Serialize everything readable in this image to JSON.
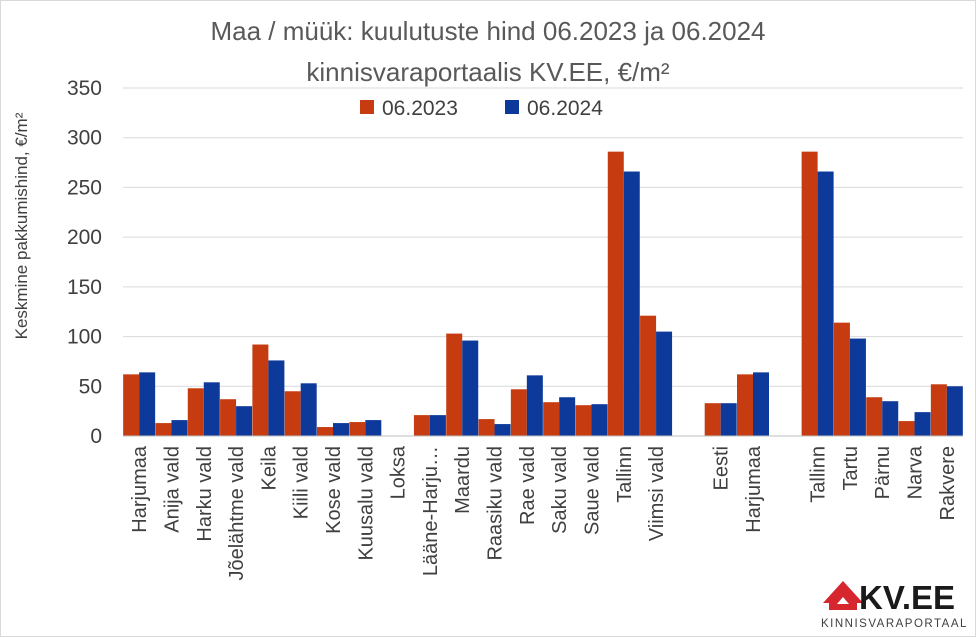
{
  "chart_data": {
    "type": "bar",
    "title": "Maa / müük: kuulutuste hind 06.2023 ja 06.2024",
    "subtitle": "kinnisvaraportaalis KV.EE, €/m²",
    "ylabel": "Keskmine pakkumishind, €/m²",
    "xlabel": "",
    "ylim": [
      0,
      350
    ],
    "yticks": [
      0,
      50,
      100,
      150,
      200,
      250,
      300,
      350
    ],
    "grid": true,
    "legend_position": "top",
    "categories": [
      "Harjumaa",
      "Anija vald",
      "Harku vald",
      "Jõelähtme vald",
      "Keila",
      "Kiili vald",
      "Kose vald",
      "Kuusalu vald",
      "Loksa",
      "Lääne-Harju…",
      "Maardu",
      "Raasiku vald",
      "Rae vald",
      "Saku vald",
      "Saue vald",
      "Tallinn",
      "Viimsi vald",
      "",
      "Eesti",
      "Harjumaa",
      "",
      "Tallinn",
      "Tartu",
      "Pärnu",
      "Narva",
      "Rakvere"
    ],
    "series": [
      {
        "name": "06.2023",
        "color": "#C63C10",
        "values": [
          62,
          13,
          48,
          37,
          92,
          45,
          9,
          14,
          0,
          21,
          103,
          17,
          47,
          34,
          31,
          286,
          121,
          null,
          33,
          62,
          null,
          286,
          114,
          39,
          15,
          52
        ]
      },
      {
        "name": "06.2024",
        "color": "#0D3A9A",
        "values": [
          64,
          16,
          54,
          30,
          76,
          53,
          13,
          16,
          0,
          21,
          96,
          12,
          61,
          39,
          32,
          266,
          105,
          null,
          33,
          64,
          null,
          266,
          98,
          35,
          24,
          50
        ]
      }
    ]
  },
  "logo": {
    "brand": "KV.EE",
    "tagline": "KINNISVARAPORTAAL",
    "house_color": "#D6262E"
  }
}
